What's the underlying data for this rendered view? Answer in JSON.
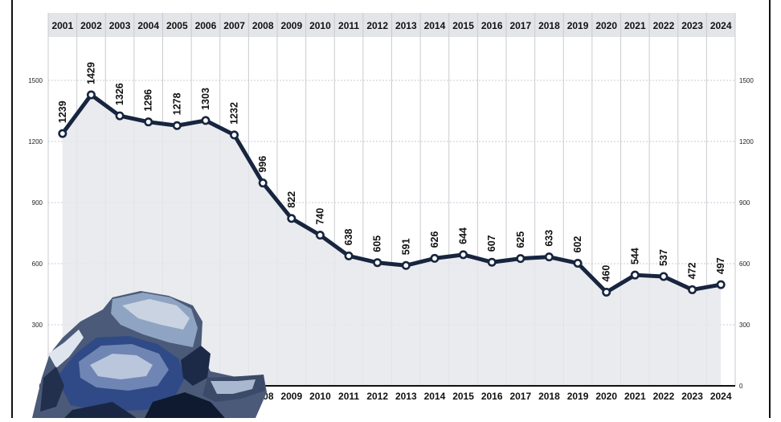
{
  "chart_data": {
    "type": "area",
    "title": "",
    "xlabel": "",
    "ylabel": "",
    "x": [
      "2001",
      "2002",
      "2003",
      "2004",
      "2005",
      "2006",
      "2007",
      "2008",
      "2009",
      "2010",
      "2011",
      "2012",
      "2013",
      "2014",
      "2015",
      "2016",
      "2017",
      "2018",
      "2019",
      "2020",
      "2021",
      "2022",
      "2023",
      "2024"
    ],
    "values": [
      1239,
      1429,
      1326,
      1296,
      1278,
      1303,
      1232,
      996,
      822,
      740,
      638,
      605,
      591,
      626,
      644,
      607,
      625,
      633,
      602,
      460,
      544,
      537,
      472,
      497
    ],
    "ylim": [
      0,
      1500
    ],
    "yticks": [
      "0",
      "300",
      "600",
      "900",
      "1200",
      "1500"
    ],
    "grid": true,
    "colors": {
      "line": "#17253f",
      "fill": "#e6e8ec",
      "marker_fill": "#ffffff",
      "header_band": "#e3e5e8",
      "grid": "#c9cbd0",
      "baseline": "#111111"
    },
    "decoration": "crashed car illustration (bottom-left)"
  }
}
